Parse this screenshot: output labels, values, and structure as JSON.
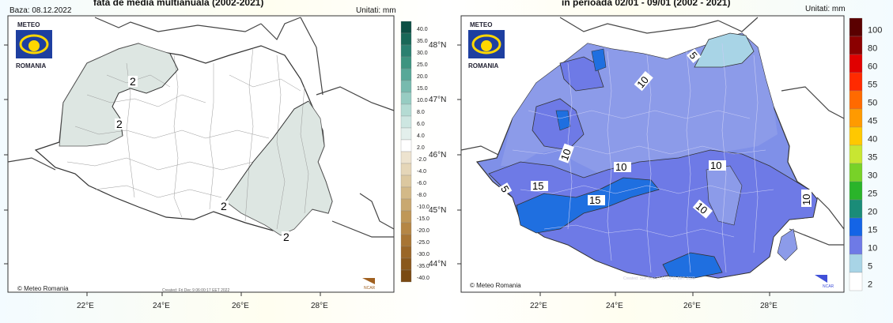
{
  "left": {
    "base_date": "Baza: 08.12.2022",
    "title": "fata de media multianuala (2002-2021)",
    "units": "Unitati: mm",
    "logo_top": "METEO",
    "logo_bottom": "ROMANIA",
    "copyright": "© Meteo Romania",
    "created": "Created: Fri Dec  9 06:00:17 EET 2022",
    "ncar": "NCAR",
    "contour_labels": [
      "2",
      "2",
      "2",
      "2"
    ],
    "legend": [
      "40.0",
      "35.0",
      "30.0",
      "25.0",
      "20.0",
      "15.0",
      "10.0",
      "8.0",
      "6.0",
      "4.0",
      "2.0",
      "-2.0",
      "-4.0",
      "-6.0",
      "-8.0",
      "-10.0",
      "-15.0",
      "-20.0",
      "-25.0",
      "-30.0",
      "-35.0",
      "-40.0"
    ],
    "legend_colors": [
      "#0d4f44",
      "#196858",
      "#2a8070",
      "#3d9480",
      "#57a898",
      "#78baae",
      "#97ccc2",
      "#b4dbd3",
      "#cde6e1",
      "#e3efec",
      "#ffffff",
      "#ede3cf",
      "#e5d6b8",
      "#dcc8a0",
      "#d3b988",
      "#c9a870",
      "#bf9758",
      "#b58645",
      "#a87534",
      "#9a6627",
      "#8a581c",
      "#7a4a12"
    ]
  },
  "right": {
    "title": "in perioada 02/01 - 09/01 (2002 - 2021)",
    "units": "Unitati: mm",
    "logo_top": "METEO",
    "logo_bottom": "ROMANIA",
    "copyright": "© Meteo Romania",
    "created": "Created: Sun Nov 27 12:54:11 EET 2022",
    "ncar": "NCAR",
    "contour_labels": [
      "5",
      "10",
      "10",
      "10",
      "10",
      "10",
      "15",
      "15",
      "10",
      "5"
    ],
    "legend": [
      "100",
      "80",
      "60",
      "55",
      "50",
      "45",
      "40",
      "35",
      "30",
      "25",
      "20",
      "15",
      "10",
      "5",
      "2"
    ],
    "legend_colors": [
      "#5a0000",
      "#8b0000",
      "#e00000",
      "#ff2a00",
      "#ff6a00",
      "#ff9a00",
      "#ffc800",
      "#c8e632",
      "#78d228",
      "#2ab42a",
      "#1a8c78",
      "#1464e6",
      "#6e7ae6",
      "#a8d4e6",
      "#ffffff"
    ]
  },
  "lat_labels": [
    "48°N",
    "47°N",
    "46°N",
    "45°N",
    "44°N"
  ],
  "lon_labels": [
    "22°E",
    "24°E",
    "26°E",
    "28°E"
  ]
}
